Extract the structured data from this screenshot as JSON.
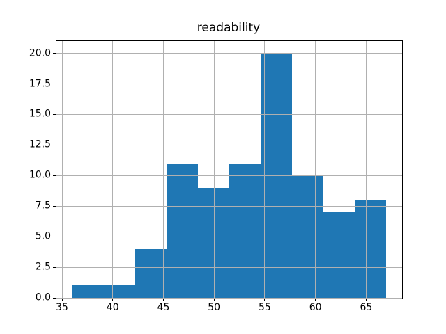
{
  "figure": {
    "title": "readability"
  },
  "chart_data": {
    "type": "bar",
    "subtype": "histogram",
    "title": "readability",
    "xlabel": "",
    "ylabel": "",
    "bin_edges": [
      36.0,
      39.1,
      42.2,
      45.3,
      48.4,
      51.5,
      54.6,
      57.7,
      60.8,
      63.9,
      67.0
    ],
    "counts": [
      1,
      1,
      4,
      11,
      9,
      11,
      20,
      10,
      7,
      8
    ],
    "xlim": [
      34.45,
      68.55
    ],
    "ylim": [
      0,
      21
    ],
    "xtick_values": [
      35,
      40,
      45,
      50,
      55,
      60,
      65
    ],
    "xtick_labels": [
      "35",
      "40",
      "45",
      "50",
      "55",
      "60",
      "65"
    ],
    "ytick_values": [
      0,
      2.5,
      5,
      7.5,
      10,
      12.5,
      15,
      17.5,
      20
    ],
    "ytick_labels": [
      "0.0",
      "2.5",
      "5.0",
      "7.5",
      "10.0",
      "12.5",
      "15.0",
      "17.5",
      "20.0"
    ],
    "grid": true,
    "grid_above_bars": true,
    "legend": false,
    "bar_color": "#1f77b4",
    "grid_color": "#b0b0b0",
    "axis_color": "#000000",
    "background": "#ffffff"
  }
}
